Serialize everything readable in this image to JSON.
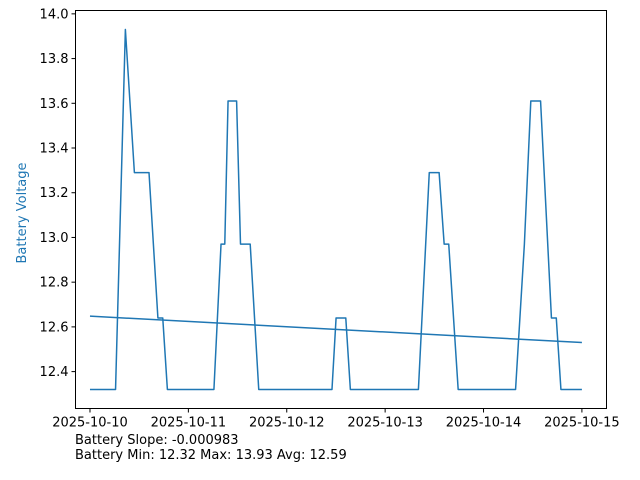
{
  "chart_data": {
    "type": "line",
    "ylabel": "Battery Voltage",
    "ylabel_color": "#1f77b4",
    "line_color": "#1f77b4",
    "x_tick_labels": [
      "2025-10-10",
      "2025-10-11",
      "2025-10-12",
      "2025-10-13",
      "2025-10-14",
      "2025-10-15"
    ],
    "y_tick_labels": [
      "12.4",
      "12.6",
      "12.8",
      "13.0",
      "13.2",
      "13.4",
      "13.6",
      "13.8",
      "14.0"
    ],
    "xlim": [
      "2025-10-09 20:28",
      "2025-10-15 06:00"
    ],
    "ylim": [
      12.235,
      14.015
    ],
    "grid": false,
    "series": [
      {
        "points": [
          [
            "2025-10-10 00:00",
            12.32
          ],
          [
            "2025-10-10 06:14",
            12.32
          ],
          [
            "2025-10-10 08:38",
            13.93
          ],
          [
            "2025-10-10 10:50",
            13.29
          ],
          [
            "2025-10-10 14:24",
            13.29
          ],
          [
            "2025-10-10 16:34",
            12.64
          ],
          [
            "2025-10-10 17:45",
            12.64
          ],
          [
            "2025-10-10 18:53",
            12.32
          ],
          [
            "2025-10-11 06:14",
            12.32
          ],
          [
            "2025-10-11 07:58",
            12.97
          ],
          [
            "2025-10-11 08:53",
            12.97
          ],
          [
            "2025-10-11 09:41",
            13.61
          ],
          [
            "2025-10-11 11:46",
            13.61
          ],
          [
            "2025-10-11 12:43",
            12.97
          ],
          [
            "2025-10-11 15:05",
            12.97
          ],
          [
            "2025-10-11 17:10",
            12.32
          ],
          [
            "2025-10-12 11:02",
            12.32
          ],
          [
            "2025-10-12 12:02",
            12.64
          ],
          [
            "2025-10-12 14:24",
            12.64
          ],
          [
            "2025-10-12 15:31",
            12.32
          ],
          [
            "2025-10-13 08:07",
            12.32
          ],
          [
            "2025-10-13 10:46",
            13.29
          ],
          [
            "2025-10-13 13:10",
            13.29
          ],
          [
            "2025-10-13 14:24",
            12.97
          ],
          [
            "2025-10-13 15:31",
            12.97
          ],
          [
            "2025-10-13 17:49",
            12.32
          ],
          [
            "2025-10-14 07:49",
            12.32
          ],
          [
            "2025-10-14 09:58",
            12.97
          ],
          [
            "2025-10-14 11:32",
            13.61
          ],
          [
            "2025-10-14 13:55",
            13.61
          ],
          [
            "2025-10-14 16:34",
            12.64
          ],
          [
            "2025-10-14 17:45",
            12.64
          ],
          [
            "2025-10-14 18:53",
            12.32
          ],
          [
            "2025-10-15 00:00",
            12.32
          ]
        ]
      },
      {
        "kind": "trend",
        "points": [
          [
            "2025-10-10 00:00",
            12.648
          ],
          [
            "2025-10-15 00:00",
            12.53
          ]
        ]
      }
    ]
  },
  "stats": {
    "slope_text": "Battery Slope: -0.000983",
    "minmax_text": "Battery Min: 12.32 Max: 13.93 Avg: 12.59"
  }
}
